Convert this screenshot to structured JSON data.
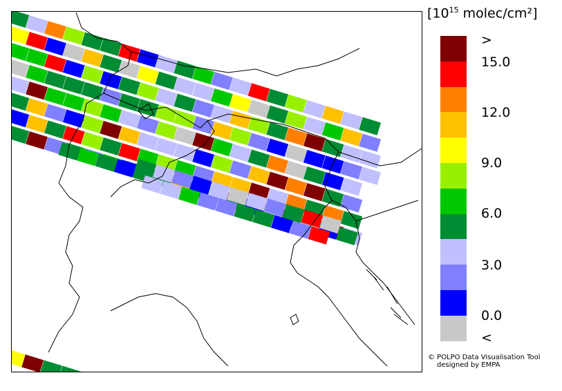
{
  "legend": {
    "title_bracket_open": "[",
    "title_base": "10",
    "title_exp": "15",
    "title_unit": " molec/cm²",
    "title_bracket_close": "]",
    "top_label": ">",
    "bottom_label": "<",
    "ticks": [
      "15.0",
      "12.0",
      "9.0",
      "6.0",
      "3.0",
      "0.0"
    ],
    "colors": [
      "#7f0000",
      "#ff0000",
      "#ff8000",
      "#ffc000",
      "#ffff00",
      "#98f000",
      "#00c800",
      "#008c32",
      "#c0c0ff",
      "#8080ff",
      "#0000ff",
      "#c8c8c8"
    ]
  },
  "credit": {
    "line1": "© POLPO Data Visualisation Tool",
    "line2": "designed by EMPA"
  }
}
